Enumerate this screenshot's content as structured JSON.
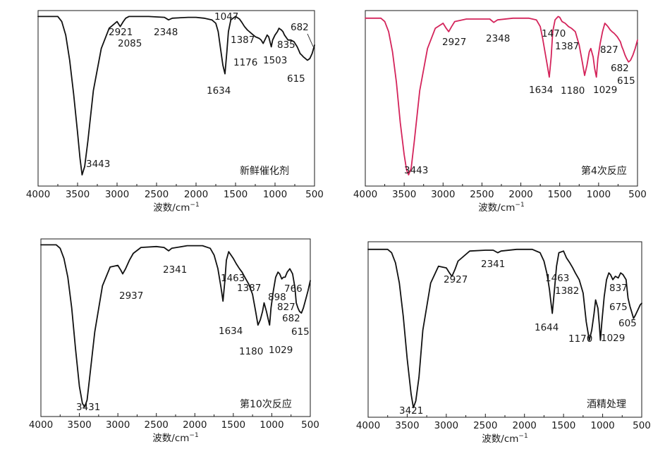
{
  "chart_data": [
    {
      "type": "line",
      "label": "新鲜催化剂",
      "color": "#111111",
      "xlabel": "波数/cm",
      "xlabel_sup": "−1",
      "xlim": [
        4000,
        500
      ],
      "xticks": [
        4000,
        3500,
        3000,
        2500,
        2000,
        1500,
        1000,
        500
      ],
      "series": [
        {
          "x": [
            4000,
            3750,
            3700,
            3650,
            3600,
            3550,
            3500,
            3470,
            3443,
            3410,
            3370,
            3300,
            3200,
            3100,
            3000,
            2960,
            2921,
            2890,
            2850,
            2600,
            2400,
            2348,
            2300,
            2100,
            2000,
            1900,
            1800,
            1750,
            1720,
            1690,
            1660,
            1634,
            1610,
            1590,
            1560,
            1500,
            1450,
            1420,
            1387,
            1350,
            1300,
            1250,
            1200,
            1176,
            1150,
            1120,
            1100,
            1080,
            1047,
            1030,
            1000,
            970,
            950,
            920,
            900,
            880,
            850,
            835,
            800,
            760,
            720,
            700,
            682,
            660,
            640,
            615,
            590,
            560,
            530,
            500
          ],
          "y": [
            0.99,
            0.99,
            0.96,
            0.88,
            0.73,
            0.53,
            0.3,
            0.15,
            0.05,
            0.1,
            0.25,
            0.55,
            0.8,
            0.92,
            0.96,
            0.93,
            0.96,
            0.98,
            0.99,
            0.99,
            0.985,
            0.97,
            0.98,
            0.985,
            0.985,
            0.98,
            0.97,
            0.95,
            0.9,
            0.8,
            0.7,
            0.65,
            0.78,
            0.9,
            0.97,
            0.99,
            0.975,
            0.955,
            0.93,
            0.91,
            0.89,
            0.87,
            0.86,
            0.85,
            0.83,
            0.86,
            0.88,
            0.87,
            0.81,
            0.85,
            0.88,
            0.9,
            0.92,
            0.91,
            0.9,
            0.88,
            0.86,
            0.85,
            0.85,
            0.84,
            0.81,
            0.79,
            0.77,
            0.76,
            0.75,
            0.74,
            0.73,
            0.74,
            0.77,
            0.82
          ]
        }
      ],
      "peaks": [
        {
          "text": "2921",
          "x": 2921
        },
        {
          "text": "2085",
          "x": 2085
        },
        {
          "text": "2348",
          "x": 2348
        },
        {
          "text": "1047",
          "x": 1047
        },
        {
          "text": "1387",
          "x": 1387
        },
        {
          "text": "1634",
          "x": 1634
        },
        {
          "text": "1176",
          "x": 1176
        },
        {
          "text": "1503",
          "x": 1503
        },
        {
          "text": "835",
          "x": 835
        },
        {
          "text": "682",
          "x": 682
        },
        {
          "text": "615",
          "x": 615
        },
        {
          "text": "3443",
          "x": 3443
        }
      ]
    },
    {
      "type": "line",
      "label": "第4次反应",
      "color": "#d4245b",
      "xlabel": "波数/cm",
      "xlabel_sup": "−1",
      "xlim": [
        4000,
        500
      ],
      "xticks": [
        4000,
        3500,
        3000,
        2500,
        2000,
        1500,
        1000,
        500
      ],
      "series": [
        {
          "x": [
            4000,
            3800,
            3750,
            3700,
            3650,
            3600,
            3550,
            3500,
            3470,
            3443,
            3410,
            3370,
            3300,
            3200,
            3100,
            3000,
            2960,
            2927,
            2890,
            2850,
            2700,
            2500,
            2400,
            2348,
            2300,
            2100,
            1900,
            1800,
            1750,
            1720,
            1690,
            1660,
            1634,
            1610,
            1590,
            1560,
            1520,
            1500,
            1470,
            1430,
            1387,
            1350,
            1300,
            1250,
            1210,
            1180,
            1150,
            1120,
            1100,
            1070,
            1050,
            1029,
            1010,
            980,
            950,
            920,
            900,
            880,
            850,
            827,
            800,
            760,
            720,
            700,
            682,
            660,
            640,
            615,
            590,
            560,
            530,
            500
          ],
          "y": [
            0.98,
            0.98,
            0.96,
            0.9,
            0.78,
            0.6,
            0.36,
            0.17,
            0.08,
            0.05,
            0.09,
            0.25,
            0.55,
            0.8,
            0.92,
            0.95,
            0.92,
            0.9,
            0.93,
            0.96,
            0.975,
            0.975,
            0.975,
            0.955,
            0.97,
            0.98,
            0.98,
            0.97,
            0.93,
            0.86,
            0.78,
            0.7,
            0.63,
            0.75,
            0.9,
            0.97,
            0.99,
            0.985,
            0.96,
            0.95,
            0.93,
            0.92,
            0.9,
            0.82,
            0.72,
            0.64,
            0.7,
            0.78,
            0.8,
            0.75,
            0.68,
            0.63,
            0.74,
            0.83,
            0.9,
            0.95,
            0.94,
            0.93,
            0.91,
            0.9,
            0.89,
            0.87,
            0.84,
            0.81,
            0.79,
            0.76,
            0.74,
            0.72,
            0.73,
            0.76,
            0.8,
            0.85
          ]
        }
      ],
      "peaks": [
        {
          "text": "2927",
          "x": 2927
        },
        {
          "text": "2348",
          "x": 2348
        },
        {
          "text": "1470",
          "x": 1470
        },
        {
          "text": "1387",
          "x": 1387
        },
        {
          "text": "827",
          "x": 827
        },
        {
          "text": "682",
          "x": 682
        },
        {
          "text": "615",
          "x": 615
        },
        {
          "text": "1634",
          "x": 1634
        },
        {
          "text": "1180",
          "x": 1180
        },
        {
          "text": "1029",
          "x": 1029
        },
        {
          "text": "3443",
          "x": 3443
        }
      ]
    },
    {
      "type": "line",
      "label": "第10次反应",
      "color": "#111111",
      "xlabel": "波数/cm",
      "xlabel_sup": "−1",
      "xlim": [
        4000,
        500
      ],
      "xticks": [
        4000,
        3500,
        3000,
        2500,
        2000,
        1500,
        1000,
        500
      ],
      "series": [
        {
          "x": [
            4000,
            3800,
            3750,
            3700,
            3650,
            3600,
            3550,
            3500,
            3460,
            3431,
            3400,
            3370,
            3300,
            3200,
            3100,
            3000,
            2960,
            2937,
            2900,
            2850,
            2800,
            2700,
            2500,
            2400,
            2341,
            2300,
            2100,
            1900,
            1800,
            1750,
            1700,
            1660,
            1634,
            1610,
            1590,
            1560,
            1500,
            1463,
            1420,
            1387,
            1350,
            1300,
            1250,
            1210,
            1180,
            1150,
            1120,
            1100,
            1070,
            1050,
            1029,
            1010,
            980,
            950,
            920,
            898,
            870,
            850,
            827,
            800,
            766,
            730,
            700,
            682,
            660,
            640,
            615,
            590,
            560,
            530,
            500
          ],
          "y": [
            0.99,
            0.99,
            0.97,
            0.91,
            0.8,
            0.62,
            0.38,
            0.16,
            0.06,
            0.04,
            0.08,
            0.2,
            0.48,
            0.75,
            0.86,
            0.87,
            0.84,
            0.82,
            0.85,
            0.9,
            0.94,
            0.975,
            0.98,
            0.975,
            0.955,
            0.97,
            0.985,
            0.985,
            0.97,
            0.93,
            0.85,
            0.74,
            0.66,
            0.78,
            0.9,
            0.95,
            0.91,
            0.88,
            0.85,
            0.83,
            0.8,
            0.76,
            0.7,
            0.6,
            0.52,
            0.55,
            0.6,
            0.65,
            0.6,
            0.56,
            0.52,
            0.62,
            0.72,
            0.8,
            0.83,
            0.82,
            0.79,
            0.8,
            0.8,
            0.83,
            0.85,
            0.82,
            0.74,
            0.65,
            0.62,
            0.6,
            0.59,
            0.62,
            0.67,
            0.72,
            0.78
          ]
        }
      ],
      "peaks": [
        {
          "text": "2937",
          "x": 2937
        },
        {
          "text": "2341",
          "x": 2341
        },
        {
          "text": "1463",
          "x": 1463
        },
        {
          "text": "1387",
          "x": 1387
        },
        {
          "text": "898",
          "x": 898
        },
        {
          "text": "766",
          "x": 766
        },
        {
          "text": "827",
          "x": 827
        },
        {
          "text": "682",
          "x": 682
        },
        {
          "text": "615",
          "x": 615
        },
        {
          "text": "1634",
          "x": 1634
        },
        {
          "text": "1180",
          "x": 1180
        },
        {
          "text": "1029",
          "x": 1029
        },
        {
          "text": "3431",
          "x": 3431
        }
      ]
    },
    {
      "type": "line",
      "label": "酒精处理",
      "color": "#111111",
      "xlabel": "波数/cm",
      "xlabel_sup": "−1",
      "xlim": [
        4000,
        500
      ],
      "xticks": [
        4000,
        3500,
        3000,
        2500,
        2000,
        1500,
        1000,
        500
      ],
      "series": [
        {
          "x": [
            4000,
            3750,
            3700,
            3650,
            3600,
            3550,
            3500,
            3450,
            3421,
            3390,
            3350,
            3300,
            3200,
            3100,
            3000,
            2960,
            2927,
            2890,
            2850,
            2700,
            2500,
            2400,
            2341,
            2300,
            2100,
            1900,
            1800,
            1750,
            1710,
            1680,
            1660,
            1644,
            1620,
            1590,
            1560,
            1500,
            1463,
            1420,
            1382,
            1350,
            1300,
            1250,
            1210,
            1170,
            1140,
            1110,
            1090,
            1060,
            1040,
            1029,
            1010,
            980,
            950,
            920,
            900,
            870,
            837,
            800,
            770,
            740,
            700,
            675,
            650,
            630,
            605,
            580,
            550,
            520,
            500
          ],
          "y": [
            0.98,
            0.98,
            0.96,
            0.9,
            0.78,
            0.58,
            0.33,
            0.12,
            0.04,
            0.08,
            0.22,
            0.5,
            0.78,
            0.88,
            0.87,
            0.84,
            0.82,
            0.86,
            0.91,
            0.97,
            0.975,
            0.975,
            0.96,
            0.97,
            0.98,
            0.98,
            0.96,
            0.91,
            0.83,
            0.74,
            0.66,
            0.6,
            0.72,
            0.88,
            0.96,
            0.97,
            0.93,
            0.9,
            0.87,
            0.84,
            0.8,
            0.72,
            0.55,
            0.44,
            0.5,
            0.6,
            0.68,
            0.63,
            0.52,
            0.44,
            0.55,
            0.7,
            0.8,
            0.84,
            0.83,
            0.8,
            0.82,
            0.81,
            0.84,
            0.83,
            0.8,
            0.69,
            0.64,
            0.61,
            0.57,
            0.59,
            0.62,
            0.65,
            0.66
          ]
        }
      ],
      "peaks": [
        {
          "text": "2927",
          "x": 2927
        },
        {
          "text": "2341",
          "x": 2341
        },
        {
          "text": "1463",
          "x": 1463
        },
        {
          "text": "1382",
          "x": 1382
        },
        {
          "text": "837",
          "x": 837
        },
        {
          "text": "675",
          "x": 675
        },
        {
          "text": "605",
          "x": 605
        },
        {
          "text": "1644",
          "x": 1644
        },
        {
          "text": "1170",
          "x": 1170
        },
        {
          "text": "1029",
          "x": 1029
        },
        {
          "text": "3421",
          "x": 3421
        }
      ]
    }
  ]
}
